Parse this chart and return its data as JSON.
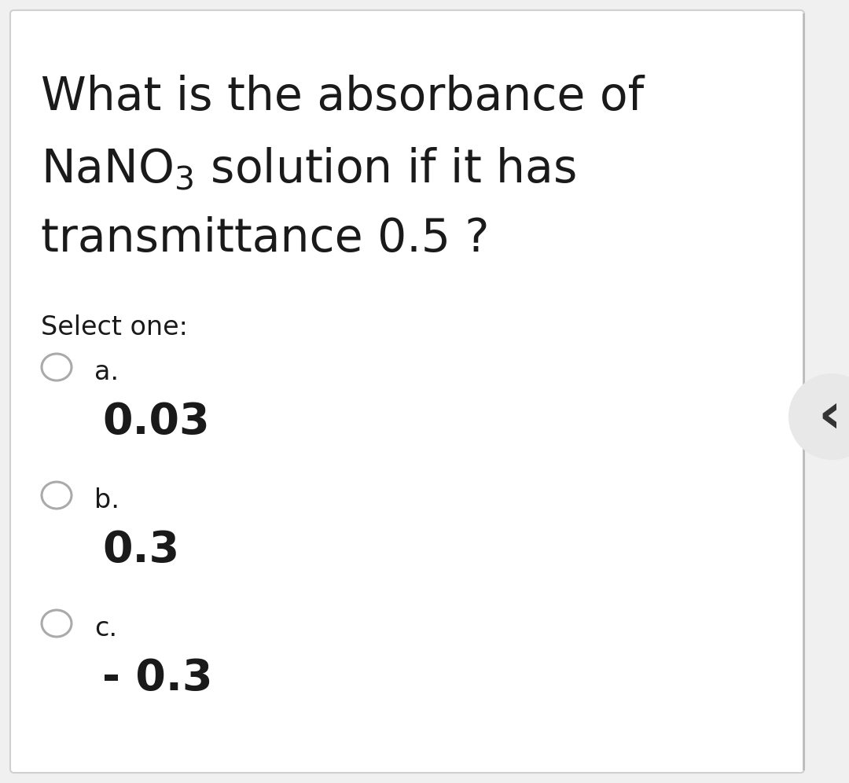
{
  "background_color": "#f0f0f0",
  "main_bg": "#ffffff",
  "question_line1": "What is the absorbance of",
  "question_line2": "NaNO$_3$ solution if it has",
  "question_line3": "transmittance 0.5 ?",
  "select_label": "Select one:",
  "options": [
    {
      "letter": "a.",
      "value": "0.03"
    },
    {
      "letter": "b.",
      "value": "0.3"
    },
    {
      "letter": "c.",
      "value": "- 0.3"
    }
  ],
  "text_color": "#1a1a1a",
  "circle_edge_color": "#aaaaaa",
  "title_fontsize": 42,
  "select_fontsize": 24,
  "option_letter_fontsize": 24,
  "option_value_fontsize": 40,
  "arrow_bg": "#e8e8e8",
  "arrow_color": "#333333",
  "arrow_fontsize": 52,
  "border_color": "#d0d0d0",
  "right_line_color": "#bbbbbb"
}
